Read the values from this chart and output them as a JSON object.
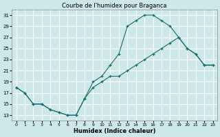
{
  "title": "Courbe de l'humidex pour Braganca",
  "xlabel": "Humidex (Indice chaleur)",
  "bg_color": "#cce8e8",
  "grid_color": "#ffffff",
  "line_color": "#1a6b6b",
  "line1_x": [
    0,
    1,
    2,
    3,
    4,
    5,
    6,
    7,
    8,
    9,
    10,
    11,
    12,
    13,
    14,
    15,
    16,
    17,
    18,
    19,
    20,
    21,
    22,
    23
  ],
  "line1_y": [
    18,
    17,
    15,
    15,
    14,
    13.5,
    13,
    13,
    16,
    19,
    20,
    22,
    24,
    29,
    30,
    31,
    31,
    30,
    29,
    27,
    25,
    24,
    22,
    22
  ],
  "line2_x": [
    0,
    1,
    2,
    3,
    4,
    5,
    6,
    7,
    8,
    9,
    10,
    11,
    12,
    13,
    14,
    15,
    16,
    17,
    18,
    19,
    20,
    21,
    22,
    23
  ],
  "line2_y": [
    18,
    17,
    15,
    15,
    14,
    13.5,
    13,
    13,
    16,
    18,
    19,
    20,
    20,
    21,
    22,
    23,
    24,
    25,
    26,
    27,
    25,
    24,
    22,
    22
  ],
  "ylim": [
    12,
    32
  ],
  "xlim": [
    -0.5,
    23.5
  ],
  "yticks": [
    13,
    15,
    17,
    19,
    21,
    23,
    25,
    27,
    29,
    31
  ],
  "xticks": [
    0,
    1,
    2,
    3,
    4,
    5,
    6,
    7,
    8,
    9,
    10,
    11,
    12,
    13,
    14,
    15,
    16,
    17,
    18,
    19,
    20,
    21,
    22,
    23
  ],
  "title_fontsize": 6,
  "label_fontsize": 6,
  "tick_fontsize": 5
}
